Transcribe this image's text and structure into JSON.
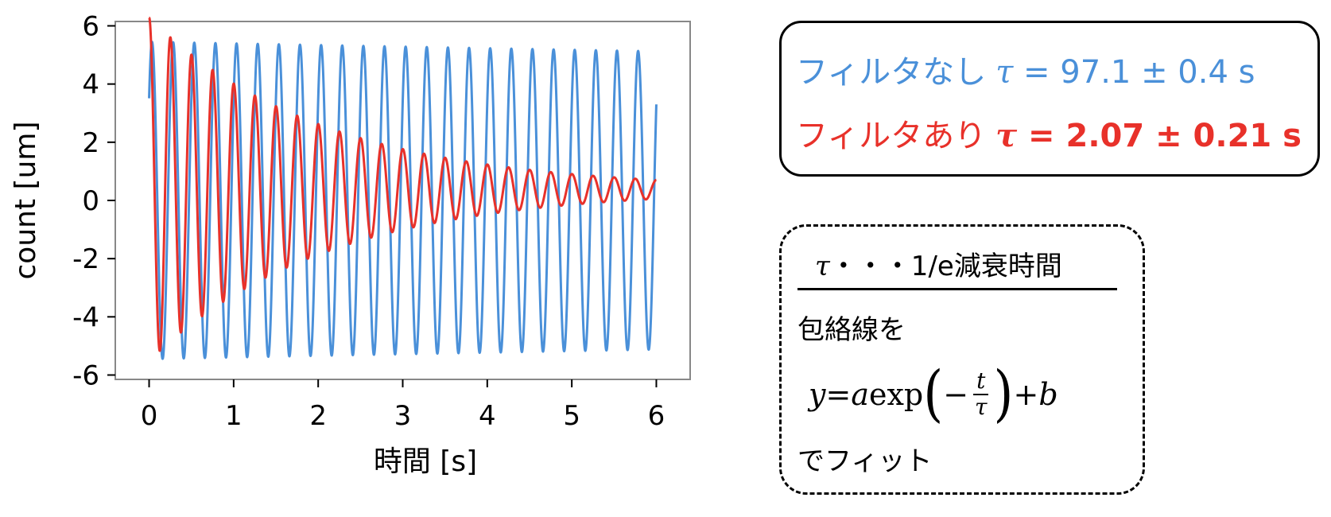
{
  "chart_data": {
    "type": "line",
    "xlabel": "時間 [s]",
    "ylabel": "count [um]",
    "xlim": [
      -0.4,
      6.4
    ],
    "ylim": [
      -6.15,
      6.15
    ],
    "xticks": [
      "0",
      "1",
      "2",
      "3",
      "4",
      "5",
      "6"
    ],
    "yticks": [
      "6",
      "4",
      "2",
      "0",
      "-2",
      "-4",
      "-6"
    ],
    "grid": false,
    "series": [
      {
        "name": "フィルタなし",
        "color": "#4a90d9",
        "model": "damped_sine",
        "amplitude": 5.45,
        "offset": 0.0,
        "frequency_hz": 4.0,
        "tau_s": 97.1,
        "phase": 0.7,
        "x_range": [
          0,
          6
        ]
      },
      {
        "name": "フィルタあり",
        "color": "#e8312a",
        "model": "damped_sine",
        "amplitude": 5.9,
        "offset": 0.38,
        "frequency_hz": 4.0,
        "tau_s": 2.07,
        "phase": 1.52,
        "x_range": [
          0,
          6
        ]
      }
    ]
  },
  "legend": {
    "line1": {
      "label": "フィルタなし",
      "tau": "τ",
      "value": " = 97.1 ± 0.4 s"
    },
    "line2": {
      "label": "フィルタあり",
      "tau": "τ",
      "value": " = 2.07 ± 0.21 s"
    }
  },
  "note": {
    "heading_tau": "τ",
    "heading_text": "・・・1/e減衰時間",
    "line1": "包絡線を",
    "formula": {
      "y": "y",
      "eq": " = ",
      "a": "a",
      "exp": " exp ",
      "open": "(",
      "minus": "−",
      "num": "t",
      "den": "τ",
      "close": ")",
      "plus": " + ",
      "b": "b"
    },
    "line2": "でフィット"
  }
}
